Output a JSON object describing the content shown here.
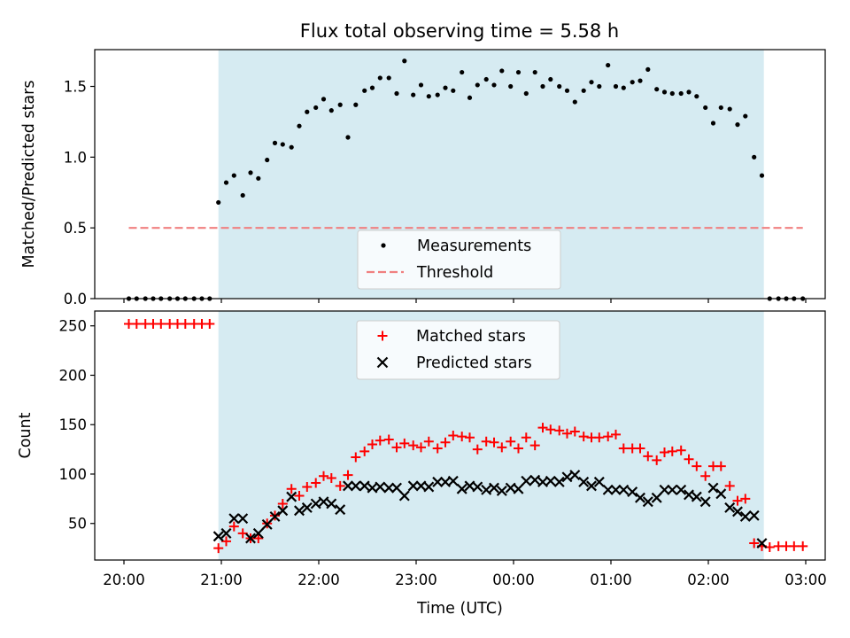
{
  "figure": {
    "title": "Flux total observing time = 5.58 h"
  },
  "chart_data": [
    {
      "type": "scatter",
      "title": "Flux total observing time = 5.58 h",
      "ylabel": "Matched/Predicted stars",
      "xlabel": "",
      "x_unit": "hours after 20:00 UTC",
      "xlim": [
        -0.3,
        7.2
      ],
      "ylim": [
        0,
        1.76
      ],
      "yticks": [
        0.0,
        0.5,
        1.0,
        1.5
      ],
      "ytick_labels": [
        "0.0",
        "0.5",
        "1.0",
        "1.5"
      ],
      "shaded_span": [
        0.97,
        6.57
      ],
      "shade_color": "#add8e6",
      "legend": {
        "position": "lower center",
        "entries": [
          "Measurements",
          "Threshold"
        ]
      },
      "threshold": {
        "name": "Threshold",
        "y": 0.5,
        "x": [
          0.05,
          6.97
        ],
        "color": "#f08080",
        "style": "dashed"
      },
      "series": [
        {
          "name": "Measurements",
          "color": "#000000",
          "x": [
            0.05,
            0.13,
            0.22,
            0.3,
            0.38,
            0.47,
            0.55,
            0.63,
            0.72,
            0.8,
            0.88,
            0.97,
            1.05,
            1.13,
            1.22,
            1.3,
            1.38,
            1.47,
            1.55,
            1.63,
            1.72,
            1.8,
            1.88,
            1.97,
            2.05,
            2.13,
            2.22,
            2.3,
            2.38,
            2.47,
            2.55,
            2.63,
            2.72,
            2.8,
            2.88,
            2.97,
            3.05,
            3.13,
            3.22,
            3.3,
            3.38,
            3.47,
            3.55,
            3.63,
            3.72,
            3.8,
            3.88,
            3.97,
            4.05,
            4.13,
            4.22,
            4.3,
            4.38,
            4.47,
            4.55,
            4.63,
            4.72,
            4.8,
            4.88,
            4.97,
            5.05,
            5.13,
            5.22,
            5.3,
            5.38,
            5.47,
            5.55,
            5.63,
            5.72,
            5.8,
            5.88,
            5.97,
            6.05,
            6.13,
            6.22,
            6.3,
            6.38,
            6.47,
            6.55,
            6.63,
            6.72,
            6.8,
            6.88,
            6.97
          ],
          "y": [
            0,
            0,
            0,
            0,
            0,
            0,
            0,
            0,
            0,
            0,
            0,
            0.68,
            0.82,
            0.87,
            0.73,
            0.89,
            0.85,
            0.98,
            1.1,
            1.09,
            1.07,
            1.22,
            1.32,
            1.35,
            1.41,
            1.33,
            1.37,
            1.14,
            1.37,
            1.47,
            1.49,
            1.56,
            1.56,
            1.45,
            1.68,
            1.44,
            1.51,
            1.43,
            1.44,
            1.49,
            1.47,
            1.6,
            1.42,
            1.51,
            1.55,
            1.51,
            1.61,
            1.5,
            1.6,
            1.45,
            1.6,
            1.5,
            1.55,
            1.5,
            1.47,
            1.39,
            1.47,
            1.53,
            1.5,
            1.65,
            1.5,
            1.49,
            1.53,
            1.54,
            1.62,
            1.48,
            1.46,
            1.45,
            1.45,
            1.46,
            1.43,
            1.35,
            1.24,
            1.35,
            1.34,
            1.23,
            1.29,
            1.0,
            0.87,
            0,
            0,
            0,
            0,
            0
          ]
        }
      ]
    },
    {
      "type": "scatter",
      "title": "",
      "ylabel": "Count",
      "xlabel": "Time (UTC)",
      "x_unit": "hours after 20:00 UTC",
      "xlim": [
        -0.3,
        7.2
      ],
      "ylim": [
        13,
        265
      ],
      "yticks": [
        50,
        100,
        150,
        200,
        250
      ],
      "ytick_labels": [
        "50",
        "100",
        "150",
        "200",
        "250"
      ],
      "xticks": [
        0,
        1,
        2,
        3,
        4,
        5,
        6,
        7
      ],
      "xtick_labels": [
        "20:00",
        "21:00",
        "22:00",
        "23:00",
        "00:00",
        "01:00",
        "02:00",
        "03:00"
      ],
      "shaded_span": [
        0.97,
        6.57
      ],
      "shade_color": "#add8e6",
      "legend": {
        "position": "upper center",
        "entries": [
          "Matched stars",
          "Predicted stars"
        ]
      },
      "series": [
        {
          "name": "Matched stars",
          "marker": "plus",
          "color": "#ff0000",
          "x": [
            0.05,
            0.13,
            0.22,
            0.3,
            0.38,
            0.47,
            0.55,
            0.63,
            0.72,
            0.8,
            0.88,
            0.97,
            1.05,
            1.13,
            1.22,
            1.3,
            1.38,
            1.47,
            1.55,
            1.63,
            1.72,
            1.8,
            1.88,
            1.97,
            2.05,
            2.13,
            2.22,
            2.3,
            2.38,
            2.47,
            2.55,
            2.63,
            2.72,
            2.8,
            2.88,
            2.97,
            3.05,
            3.13,
            3.22,
            3.3,
            3.38,
            3.47,
            3.55,
            3.63,
            3.72,
            3.8,
            3.88,
            3.97,
            4.05,
            4.13,
            4.22,
            4.3,
            4.38,
            4.47,
            4.55,
            4.63,
            4.72,
            4.8,
            4.88,
            4.97,
            5.05,
            5.13,
            5.22,
            5.3,
            5.38,
            5.47,
            5.55,
            5.63,
            5.72,
            5.8,
            5.88,
            5.97,
            6.05,
            6.13,
            6.22,
            6.3,
            6.38,
            6.47,
            6.55,
            6.63,
            6.72,
            6.8,
            6.88,
            6.97
          ],
          "y": [
            252,
            252,
            252,
            252,
            252,
            252,
            252,
            252,
            252,
            252,
            252,
            25,
            32,
            47,
            40,
            35,
            35,
            50,
            58,
            70,
            85,
            78,
            87,
            91,
            98,
            96,
            88,
            99,
            117,
            123,
            130,
            134,
            135,
            127,
            131,
            129,
            127,
            133,
            126,
            132,
            139,
            138,
            137,
            125,
            133,
            132,
            127,
            133,
            126,
            137,
            129,
            147,
            145,
            144,
            141,
            143,
            138,
            137,
            137,
            138,
            140,
            126,
            126,
            126,
            118,
            114,
            122,
            123,
            124,
            115,
            108,
            98,
            108,
            108,
            88,
            73,
            75,
            30,
            27,
            26,
            27,
            27,
            27,
            27
          ]
        },
        {
          "name": "Predicted stars",
          "marker": "x",
          "color": "#000000",
          "x": [
            0.97,
            1.05,
            1.13,
            1.22,
            1.3,
            1.38,
            1.47,
            1.55,
            1.63,
            1.72,
            1.8,
            1.88,
            1.97,
            2.05,
            2.13,
            2.22,
            2.3,
            2.38,
            2.47,
            2.55,
            2.63,
            2.72,
            2.8,
            2.88,
            2.97,
            3.05,
            3.13,
            3.22,
            3.3,
            3.38,
            3.47,
            3.55,
            3.63,
            3.72,
            3.8,
            3.88,
            3.97,
            4.05,
            4.13,
            4.22,
            4.3,
            4.38,
            4.47,
            4.55,
            4.63,
            4.72,
            4.8,
            4.88,
            4.97,
            5.05,
            5.13,
            5.22,
            5.3,
            5.38,
            5.47,
            5.55,
            5.63,
            5.72,
            5.8,
            5.88,
            5.97,
            6.05,
            6.13,
            6.22,
            6.3,
            6.38,
            6.47,
            6.55
          ],
          "y": [
            37,
            40,
            55,
            55,
            35,
            40,
            49,
            57,
            63,
            77,
            63,
            66,
            70,
            72,
            70,
            64,
            88,
            88,
            88,
            86,
            87,
            86,
            86,
            78,
            88,
            88,
            87,
            92,
            92,
            93,
            85,
            88,
            87,
            84,
            86,
            83,
            86,
            85,
            93,
            94,
            92,
            93,
            92,
            97,
            99,
            92,
            88,
            92,
            84,
            84,
            84,
            82,
            76,
            72,
            76,
            84,
            84,
            84,
            79,
            77,
            72,
            86,
            80,
            66,
            62,
            57,
            58,
            30
          ]
        }
      ]
    }
  ]
}
